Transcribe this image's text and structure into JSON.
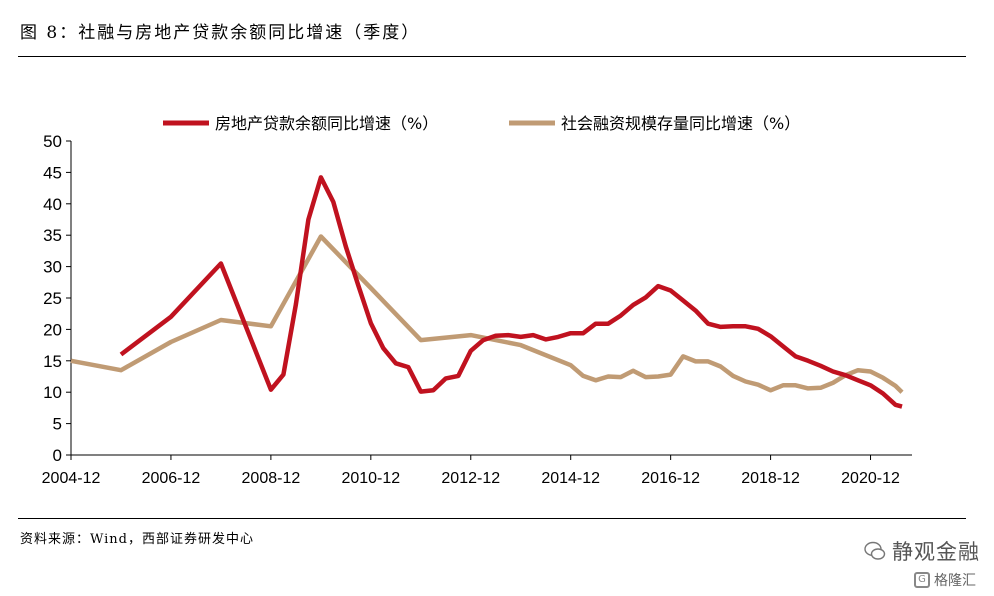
{
  "header": {
    "title": "图 8：社融与房地产贷款余额同比增速（季度）"
  },
  "footer": {
    "source": "资料来源：Wind，西部证券研发中心"
  },
  "watermark": {
    "primary": "静观金融",
    "secondary": "格隆汇",
    "secondary_mark": "G"
  },
  "chart_data": {
    "type": "line",
    "title": "",
    "xlabel": "",
    "ylabel": "",
    "ylim": [
      0,
      50
    ],
    "yticks": [
      0,
      5,
      10,
      15,
      20,
      25,
      30,
      35,
      40,
      45,
      50
    ],
    "xlim": [
      2004.92,
      2021.75
    ],
    "xtick_labels": [
      "2004-12",
      "2006-12",
      "2008-12",
      "2010-12",
      "2012-12",
      "2014-12",
      "2016-12",
      "2018-12",
      "2020-12"
    ],
    "xtick_values": [
      2004.92,
      2006.92,
      2008.92,
      2010.92,
      2012.92,
      2014.92,
      2016.92,
      2018.92,
      2020.92
    ],
    "grid": false,
    "legend_position": "top",
    "series": [
      {
        "name": "房地产贷款余额同比增速（%）",
        "color": "#c0121f",
        "points": [
          [
            2005.92,
            16.0
          ],
          [
            2006.92,
            22.0
          ],
          [
            2007.92,
            30.5
          ],
          [
            2008.92,
            10.4
          ],
          [
            2009.17,
            12.8
          ],
          [
            2009.42,
            24.0
          ],
          [
            2009.67,
            37.5
          ],
          [
            2009.92,
            44.2
          ],
          [
            2010.17,
            40.3
          ],
          [
            2010.42,
            33.2
          ],
          [
            2010.67,
            27.0
          ],
          [
            2010.92,
            21.0
          ],
          [
            2011.17,
            17.0
          ],
          [
            2011.42,
            14.6
          ],
          [
            2011.67,
            14.0
          ],
          [
            2011.92,
            10.1
          ],
          [
            2012.17,
            10.3
          ],
          [
            2012.42,
            12.2
          ],
          [
            2012.67,
            12.6
          ],
          [
            2012.92,
            16.6
          ],
          [
            2013.17,
            18.3
          ],
          [
            2013.42,
            19.0
          ],
          [
            2013.67,
            19.1
          ],
          [
            2013.92,
            18.8
          ],
          [
            2014.17,
            19.1
          ],
          [
            2014.42,
            18.4
          ],
          [
            2014.67,
            18.8
          ],
          [
            2014.92,
            19.4
          ],
          [
            2015.17,
            19.4
          ],
          [
            2015.42,
            20.9
          ],
          [
            2015.67,
            20.9
          ],
          [
            2015.92,
            22.2
          ],
          [
            2016.17,
            23.9
          ],
          [
            2016.42,
            25.1
          ],
          [
            2016.67,
            26.9
          ],
          [
            2016.92,
            26.2
          ],
          [
            2017.17,
            24.6
          ],
          [
            2017.42,
            23.0
          ],
          [
            2017.67,
            20.9
          ],
          [
            2017.92,
            20.4
          ],
          [
            2018.17,
            20.5
          ],
          [
            2018.42,
            20.5
          ],
          [
            2018.67,
            20.1
          ],
          [
            2018.92,
            18.9
          ],
          [
            2019.17,
            17.3
          ],
          [
            2019.42,
            15.7
          ],
          [
            2019.67,
            15.0
          ],
          [
            2019.92,
            14.2
          ],
          [
            2020.17,
            13.3
          ],
          [
            2020.42,
            12.7
          ],
          [
            2020.67,
            11.9
          ],
          [
            2020.92,
            11.1
          ],
          [
            2021.17,
            9.8
          ],
          [
            2021.42,
            8.0
          ],
          [
            2021.55,
            7.7
          ]
        ]
      },
      {
        "name": "社会融资规模存量同比增速（%）",
        "color": "#c09b74",
        "points": [
          [
            2004.92,
            15.0
          ],
          [
            2005.92,
            13.5
          ],
          [
            2006.92,
            18.0
          ],
          [
            2007.92,
            21.5
          ],
          [
            2008.92,
            20.5
          ],
          [
            2009.92,
            34.8
          ],
          [
            2010.92,
            26.6
          ],
          [
            2011.92,
            18.3
          ],
          [
            2012.92,
            19.1
          ],
          [
            2013.92,
            17.5
          ],
          [
            2014.92,
            14.3
          ],
          [
            2015.17,
            12.6
          ],
          [
            2015.42,
            11.9
          ],
          [
            2015.67,
            12.5
          ],
          [
            2015.92,
            12.4
          ],
          [
            2016.17,
            13.4
          ],
          [
            2016.42,
            12.4
          ],
          [
            2016.67,
            12.5
          ],
          [
            2016.92,
            12.8
          ],
          [
            2017.17,
            15.7
          ],
          [
            2017.42,
            14.9
          ],
          [
            2017.67,
            14.9
          ],
          [
            2017.92,
            14.1
          ],
          [
            2018.17,
            12.6
          ],
          [
            2018.42,
            11.7
          ],
          [
            2018.67,
            11.2
          ],
          [
            2018.92,
            10.3
          ],
          [
            2019.17,
            11.1
          ],
          [
            2019.42,
            11.1
          ],
          [
            2019.67,
            10.6
          ],
          [
            2019.92,
            10.7
          ],
          [
            2020.17,
            11.5
          ],
          [
            2020.42,
            12.7
          ],
          [
            2020.67,
            13.5
          ],
          [
            2020.92,
            13.3
          ],
          [
            2021.17,
            12.3
          ],
          [
            2021.42,
            11.0
          ],
          [
            2021.55,
            10.0
          ]
        ]
      }
    ]
  }
}
